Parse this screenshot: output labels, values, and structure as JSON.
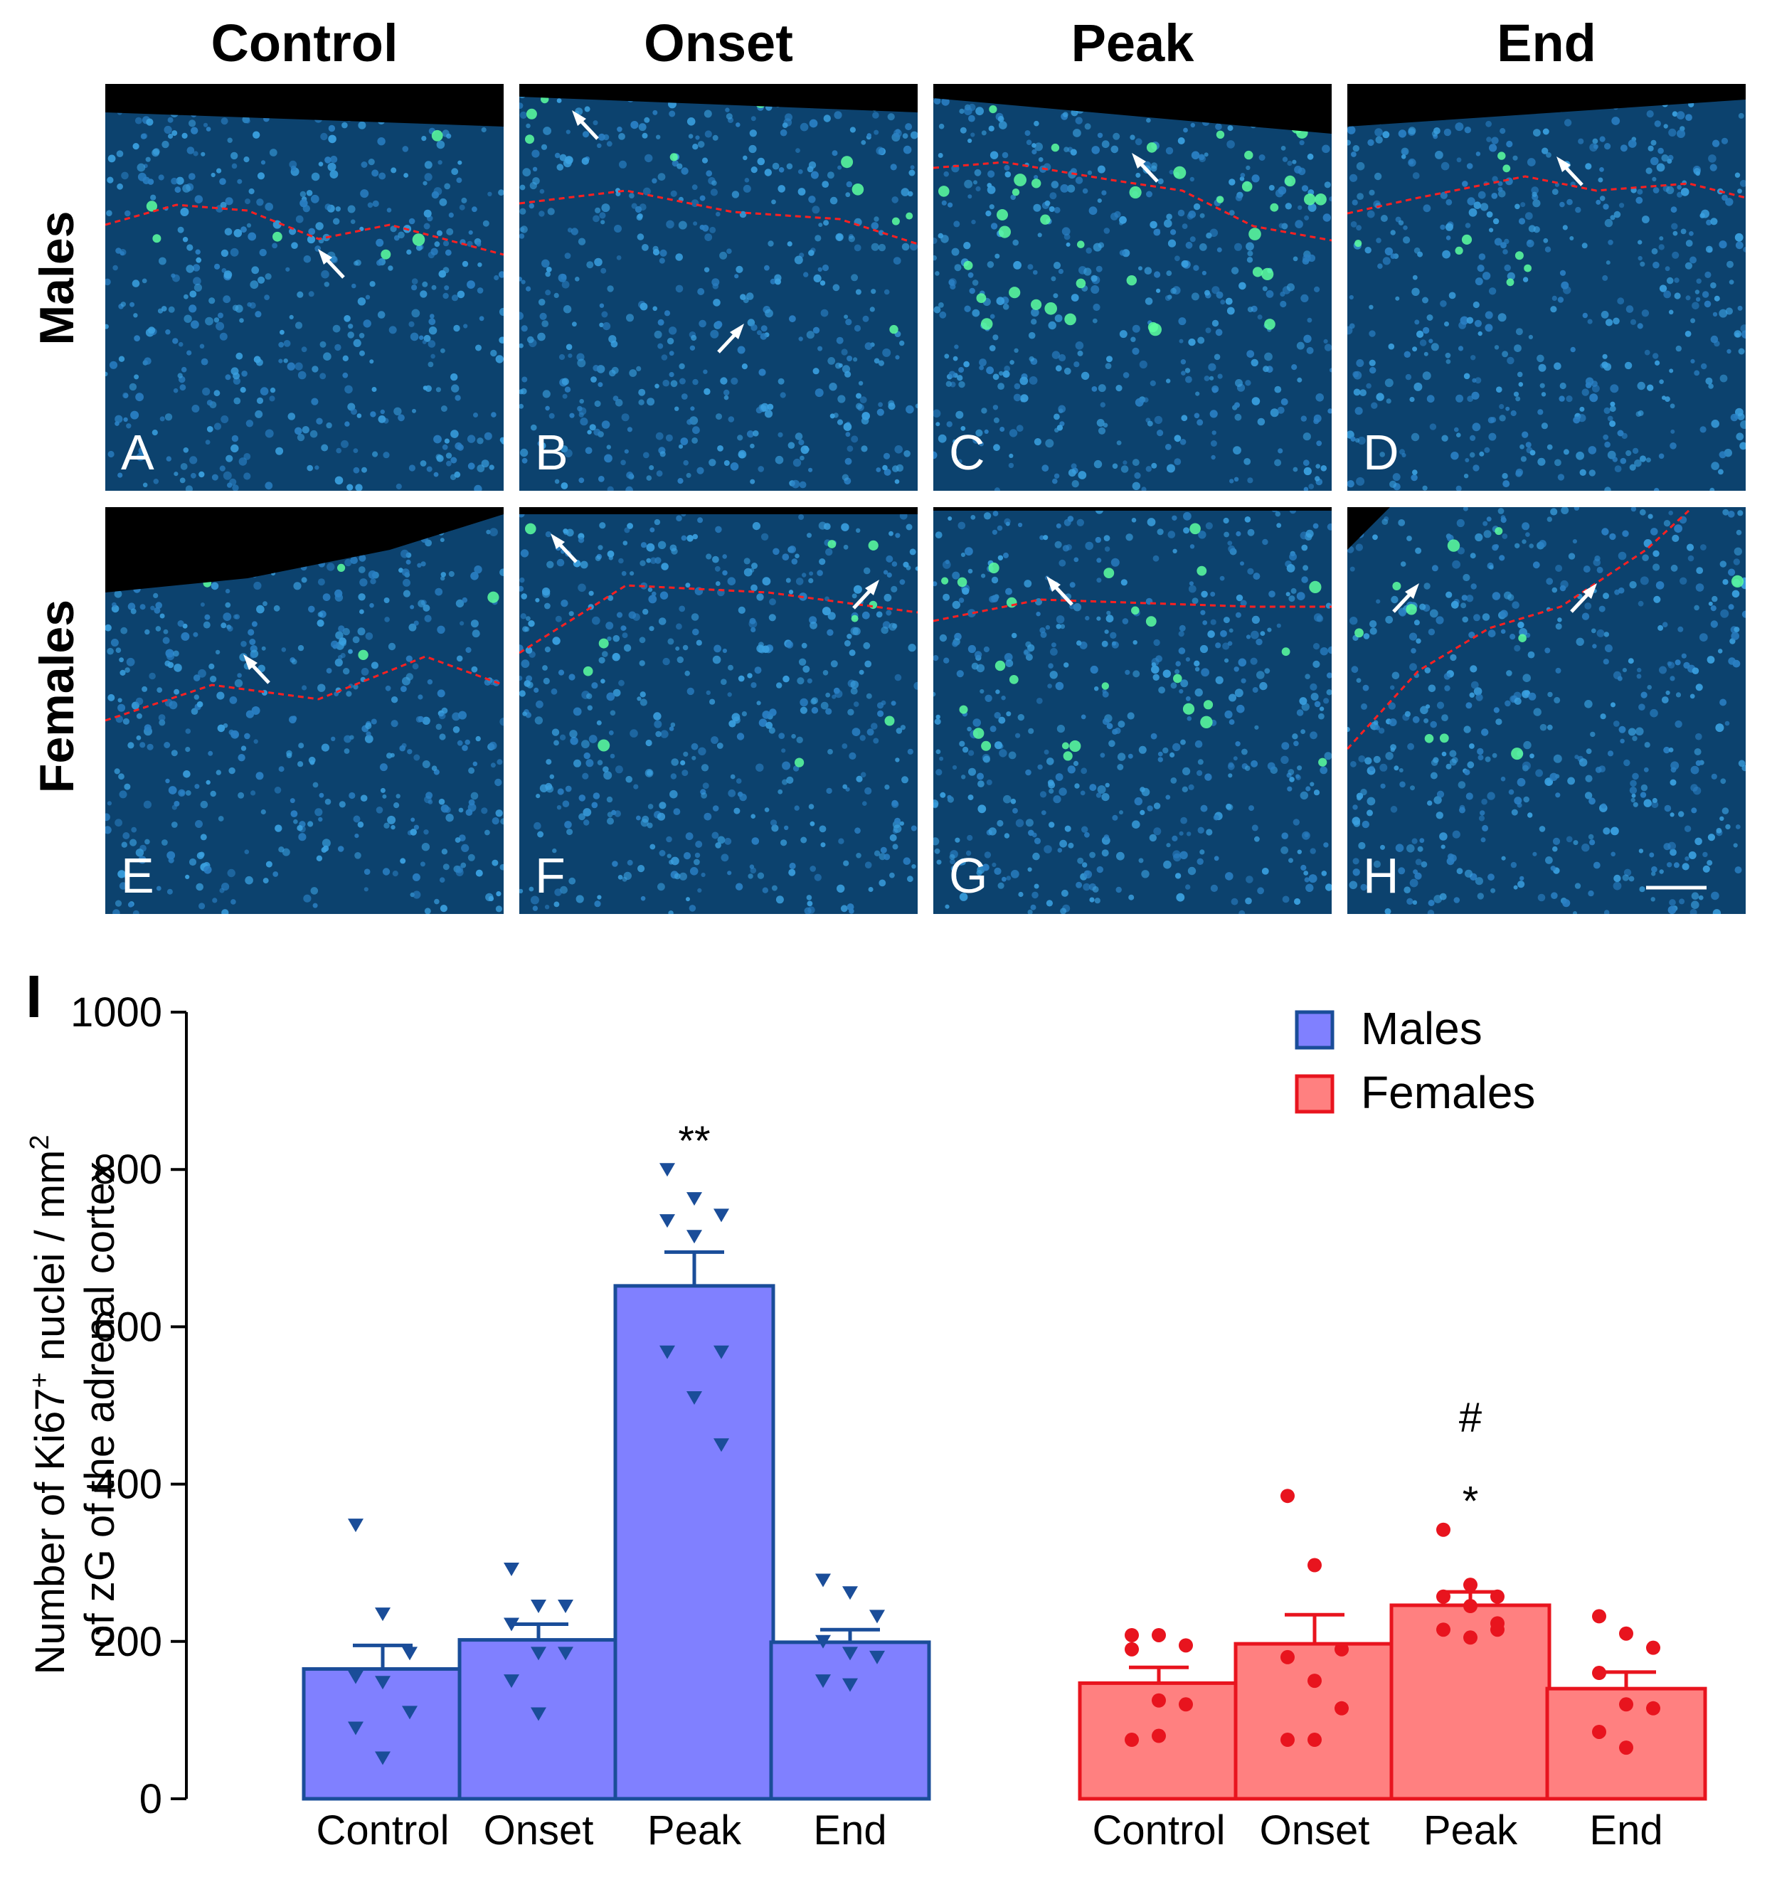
{
  "micrographs": {
    "columns": [
      "Control",
      "Onset",
      "Peak",
      "End"
    ],
    "rows": [
      "Males",
      "Females"
    ],
    "panels": [
      "A",
      "B",
      "C",
      "D",
      "E",
      "F",
      "G",
      "H"
    ]
  },
  "panel_label": "I",
  "chart_data": {
    "type": "bar",
    "title": "",
    "ylabel_line1": "Number of Ki67",
    "ylabel_sup1": "+",
    "ylabel_line1b": " nuclei / mm",
    "ylabel_sup2": "2",
    "ylabel_line2": "of zG of the adrenal cortex",
    "xlabel": "",
    "ylim": [
      0,
      1000
    ],
    "yticks": [
      0,
      200,
      400,
      600,
      800,
      1000
    ],
    "categories": [
      "Control",
      "Onset",
      "Peak",
      "End"
    ],
    "series": [
      {
        "name": "Males",
        "color": "#8080ff",
        "edge": "#1a4d99",
        "marker_color": "#1a4d99",
        "marker": "triangle-down",
        "values": [
          165,
          202,
          652,
          199
        ],
        "sem": [
          30,
          20,
          43,
          16
        ],
        "points": [
          [
            348,
            235,
            185,
            155,
            148,
            110,
            90,
            52
          ],
          [
            292,
            245,
            245,
            222,
            185,
            185,
            150,
            108
          ],
          [
            800,
            763,
            742,
            735,
            715,
            568,
            568,
            510,
            450
          ],
          [
            278,
            262,
            232,
            200,
            185,
            180,
            150,
            145
          ]
        ],
        "annotations": [
          "",
          "",
          "**",
          ""
        ]
      },
      {
        "name": "Females",
        "color": "#ff8080",
        "edge": "#e8141e",
        "marker_color": "#e8141e",
        "marker": "circle",
        "values": [
          147,
          197,
          246,
          140
        ],
        "sem": [
          20,
          37,
          17,
          21
        ],
        "points": [
          [
            208,
            208,
            195,
            190,
            125,
            120,
            75,
            80
          ],
          [
            385,
            297,
            190,
            180,
            150,
            115,
            75,
            75
          ],
          [
            342,
            272,
            257,
            257,
            245,
            223,
            215,
            205,
            215
          ],
          [
            232,
            210,
            192,
            160,
            120,
            115,
            85,
            65
          ]
        ],
        "annotations": [
          "",
          "",
          "#\n*",
          ""
        ]
      }
    ],
    "legend": [
      "Males",
      "Females"
    ],
    "legend_position": "top-right"
  }
}
